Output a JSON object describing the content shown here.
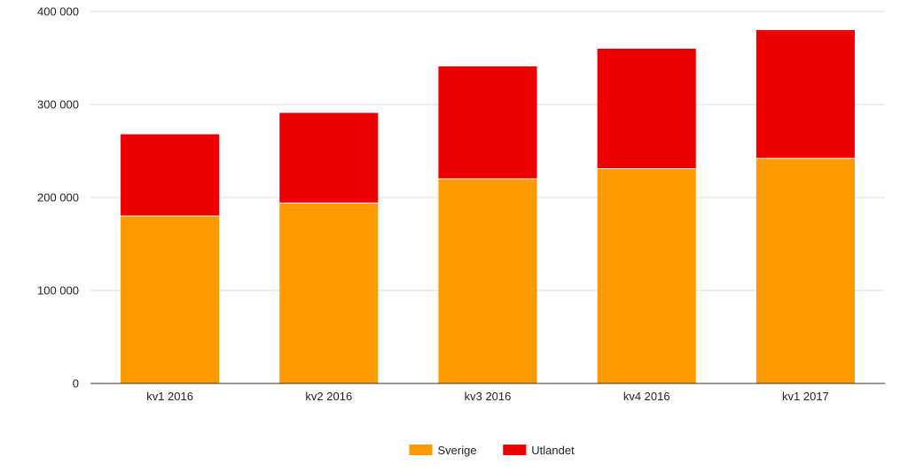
{
  "chart_data": {
    "type": "bar",
    "stacked": true,
    "title": "",
    "xlabel": "",
    "ylabel": "",
    "categories": [
      "kv1 2016",
      "kv2 2016",
      "kv3 2016",
      "kv4 2016",
      "kv1 2017"
    ],
    "series": [
      {
        "name": "Sverige",
        "color": "#ff9900",
        "values": [
          180000,
          194000,
          220000,
          231000,
          242000
        ]
      },
      {
        "name": "Utlandet",
        "color": "#ee0000",
        "values": [
          88000,
          97000,
          121000,
          129000,
          138000
        ]
      }
    ],
    "ylim": [
      0,
      400000
    ],
    "yticks": [
      0,
      100000,
      200000,
      300000,
      400000
    ],
    "ytick_labels": [
      "0",
      "100 000",
      "200 000",
      "300 000",
      "400 000"
    ],
    "grid": true,
    "legend_position": "bottom-center",
    "gridline_color": "#dddddd",
    "axis_color": "#333333"
  }
}
